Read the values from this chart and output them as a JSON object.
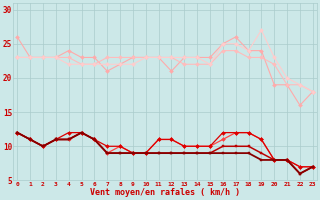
{
  "xlabel": "Vent moyen/en rafales ( km/h )",
  "xlabel_color": "#cc0000",
  "bg_color": "#cce8e8",
  "grid_color": "#aacccc",
  "x": [
    0,
    1,
    2,
    3,
    4,
    5,
    6,
    7,
    8,
    9,
    10,
    11,
    12,
    13,
    14,
    15,
    16,
    17,
    18,
    19,
    20,
    21,
    22,
    23
  ],
  "series": [
    {
      "color": "#ffaaaa",
      "marker": "D",
      "ms": 2,
      "lw": 0.8,
      "y": [
        26,
        23,
        23,
        23,
        24,
        23,
        23,
        21,
        22,
        23,
        23,
        23,
        21,
        23,
        23,
        23,
        25,
        26,
        24,
        24,
        19,
        19,
        16,
        18
      ]
    },
    {
      "color": "#ffbbbb",
      "marker": "D",
      "ms": 2,
      "lw": 0.8,
      "y": [
        23,
        23,
        23,
        23,
        23,
        22,
        22,
        23,
        23,
        23,
        23,
        23,
        23,
        22,
        22,
        22,
        24,
        24,
        23,
        23,
        22,
        19,
        19,
        18
      ]
    },
    {
      "color": "#ffcccc",
      "marker": "D",
      "ms": 2,
      "lw": 0.8,
      "y": [
        23,
        23,
        23,
        23,
        22,
        22,
        22,
        22,
        22,
        22,
        23,
        23,
        23,
        23,
        23,
        22,
        25,
        25,
        24,
        27,
        23,
        20,
        19,
        18
      ]
    },
    {
      "color": "#ff4444",
      "marker": "D",
      "ms": 2,
      "lw": 0.9,
      "y": [
        12,
        11,
        10,
        11,
        11,
        12,
        11,
        9,
        10,
        9,
        9,
        11,
        11,
        10,
        10,
        10,
        11,
        12,
        12,
        11,
        8,
        8,
        7,
        7
      ]
    },
    {
      "color": "#dd0000",
      "marker": "D",
      "ms": 2,
      "lw": 0.9,
      "y": [
        12,
        11,
        10,
        11,
        12,
        12,
        11,
        10,
        10,
        9,
        9,
        11,
        11,
        10,
        10,
        10,
        12,
        12,
        12,
        11,
        8,
        8,
        7,
        7
      ]
    },
    {
      "color": "#bb0000",
      "marker": "s",
      "ms": 2,
      "lw": 1.1,
      "y": [
        12,
        11,
        10,
        11,
        11,
        12,
        11,
        9,
        9,
        9,
        9,
        9,
        9,
        9,
        9,
        9,
        10,
        10,
        10,
        9,
        8,
        8,
        6,
        7
      ]
    },
    {
      "color": "#880000",
      "marker": "s",
      "ms": 2,
      "lw": 1.3,
      "y": [
        12,
        11,
        10,
        11,
        11,
        12,
        11,
        9,
        9,
        9,
        9,
        9,
        9,
        9,
        9,
        9,
        9,
        9,
        9,
        8,
        8,
        8,
        6,
        7
      ]
    }
  ],
  "yticks": [
    5,
    10,
    15,
    20,
    25,
    30
  ],
  "xticks": [
    0,
    1,
    2,
    3,
    4,
    5,
    6,
    7,
    8,
    9,
    10,
    11,
    12,
    13,
    14,
    15,
    16,
    17,
    18,
    19,
    20,
    21,
    22,
    23
  ],
  "ylim": [
    5,
    31
  ],
  "xlim": [
    -0.3,
    23.3
  ]
}
